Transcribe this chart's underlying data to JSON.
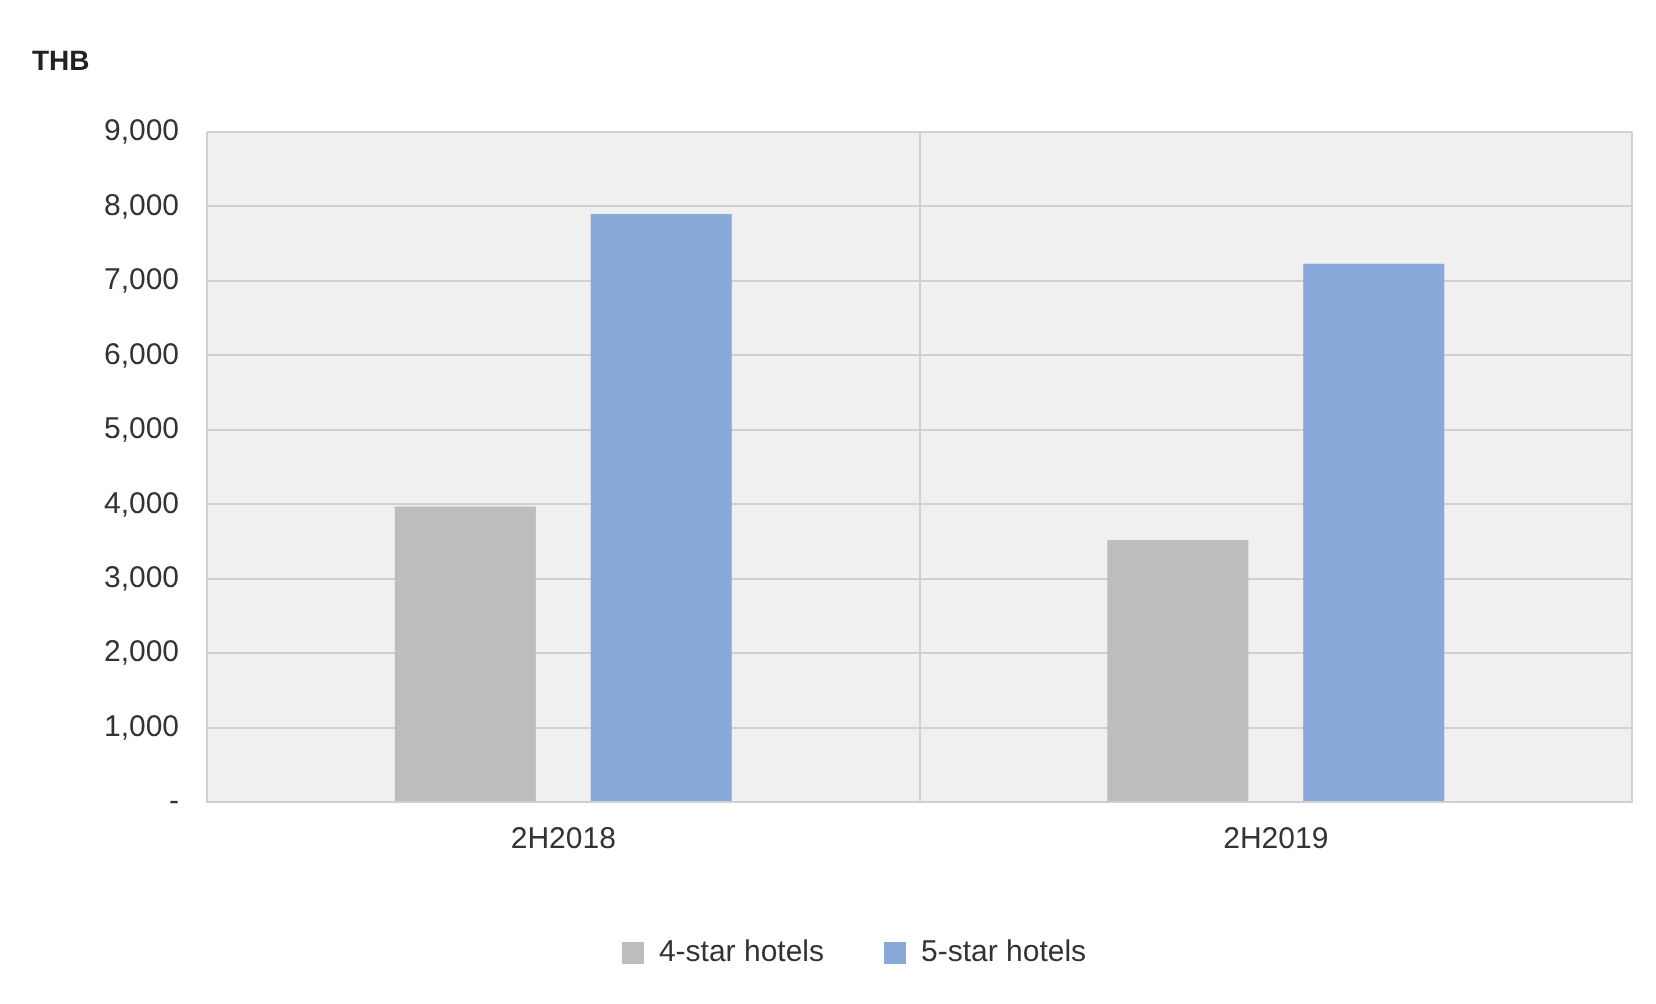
{
  "chart_data": {
    "type": "bar",
    "ylabel": "THB",
    "categories": [
      "2H2018",
      "2H2019"
    ],
    "series": [
      {
        "name": "4-star hotels",
        "color": "#bdbdbd",
        "values": [
          3970,
          3520
        ]
      },
      {
        "name": "5-star hotels",
        "color": "#8aa9db",
        "values": [
          7900,
          7230
        ]
      }
    ],
    "ylim": [
      0,
      9000
    ],
    "yticks": [
      {
        "value": 0,
        "label": "-"
      },
      {
        "value": 1000,
        "label": "1,000"
      },
      {
        "value": 2000,
        "label": "2,000"
      },
      {
        "value": 3000,
        "label": "3,000"
      },
      {
        "value": 4000,
        "label": "4,000"
      },
      {
        "value": 5000,
        "label": "5,000"
      },
      {
        "value": 6000,
        "label": "6,000"
      },
      {
        "value": 7000,
        "label": "7,000"
      },
      {
        "value": 8000,
        "label": "8,000"
      },
      {
        "value": 9000,
        "label": "9,000"
      }
    ],
    "grid": true,
    "legend": "bottom"
  }
}
